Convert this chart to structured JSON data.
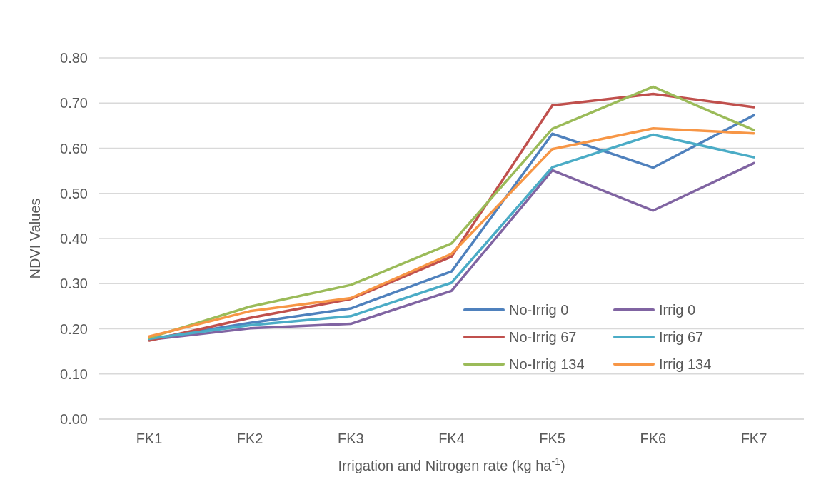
{
  "chart_data": {
    "type": "line",
    "xlabel": "Irrigation and Nitrogen rate (kg ha$^{-1}$)",
    "ylabel": "NDVI Values",
    "categories": [
      "FK1",
      "FK2",
      "FK3",
      "FK4",
      "FK5",
      "FK6",
      "FK7"
    ],
    "series": [
      {
        "name": "No-Irrig 0",
        "color": "#4f81bd",
        "values": [
          0.177,
          0.213,
          0.245,
          0.327,
          0.632,
          0.557,
          0.673
        ]
      },
      {
        "name": "Irrig 0",
        "color": "#8064a2",
        "values": [
          0.176,
          0.201,
          0.211,
          0.284,
          0.551,
          0.462,
          0.567
        ]
      },
      {
        "name": "No-Irrig 67",
        "color": "#c0504d",
        "values": [
          0.174,
          0.224,
          0.266,
          0.36,
          0.695,
          0.72,
          0.691
        ]
      },
      {
        "name": "Irrig 67",
        "color": "#4bacc6",
        "values": [
          0.178,
          0.208,
          0.228,
          0.302,
          0.558,
          0.63,
          0.58
        ]
      },
      {
        "name": "No-Irrig 134",
        "color": "#9bbb59",
        "values": [
          0.18,
          0.249,
          0.297,
          0.389,
          0.643,
          0.736,
          0.64
        ]
      },
      {
        "name": "Irrig 134",
        "color": "#f79646",
        "values": [
          0.183,
          0.239,
          0.268,
          0.366,
          0.598,
          0.644,
          0.633
        ]
      }
    ],
    "ylim": [
      0,
      0.8
    ],
    "yticks": [
      {
        "value": 0,
        "label": "0.00"
      },
      {
        "value": 0.1,
        "label": "0.10"
      },
      {
        "value": 0.2,
        "label": "0.20"
      },
      {
        "value": 0.3,
        "label": "0.30"
      },
      {
        "value": 0.4,
        "label": "0.40"
      },
      {
        "value": 0.5,
        "label": "0.50"
      },
      {
        "value": 0.6,
        "label": "0.60"
      },
      {
        "value": 0.7,
        "label": "0.70"
      },
      {
        "value": 0.8,
        "label": "0.80"
      }
    ],
    "grid": "y",
    "legend": "bottom right",
    "marker": "none",
    "line_style": "solid"
  }
}
